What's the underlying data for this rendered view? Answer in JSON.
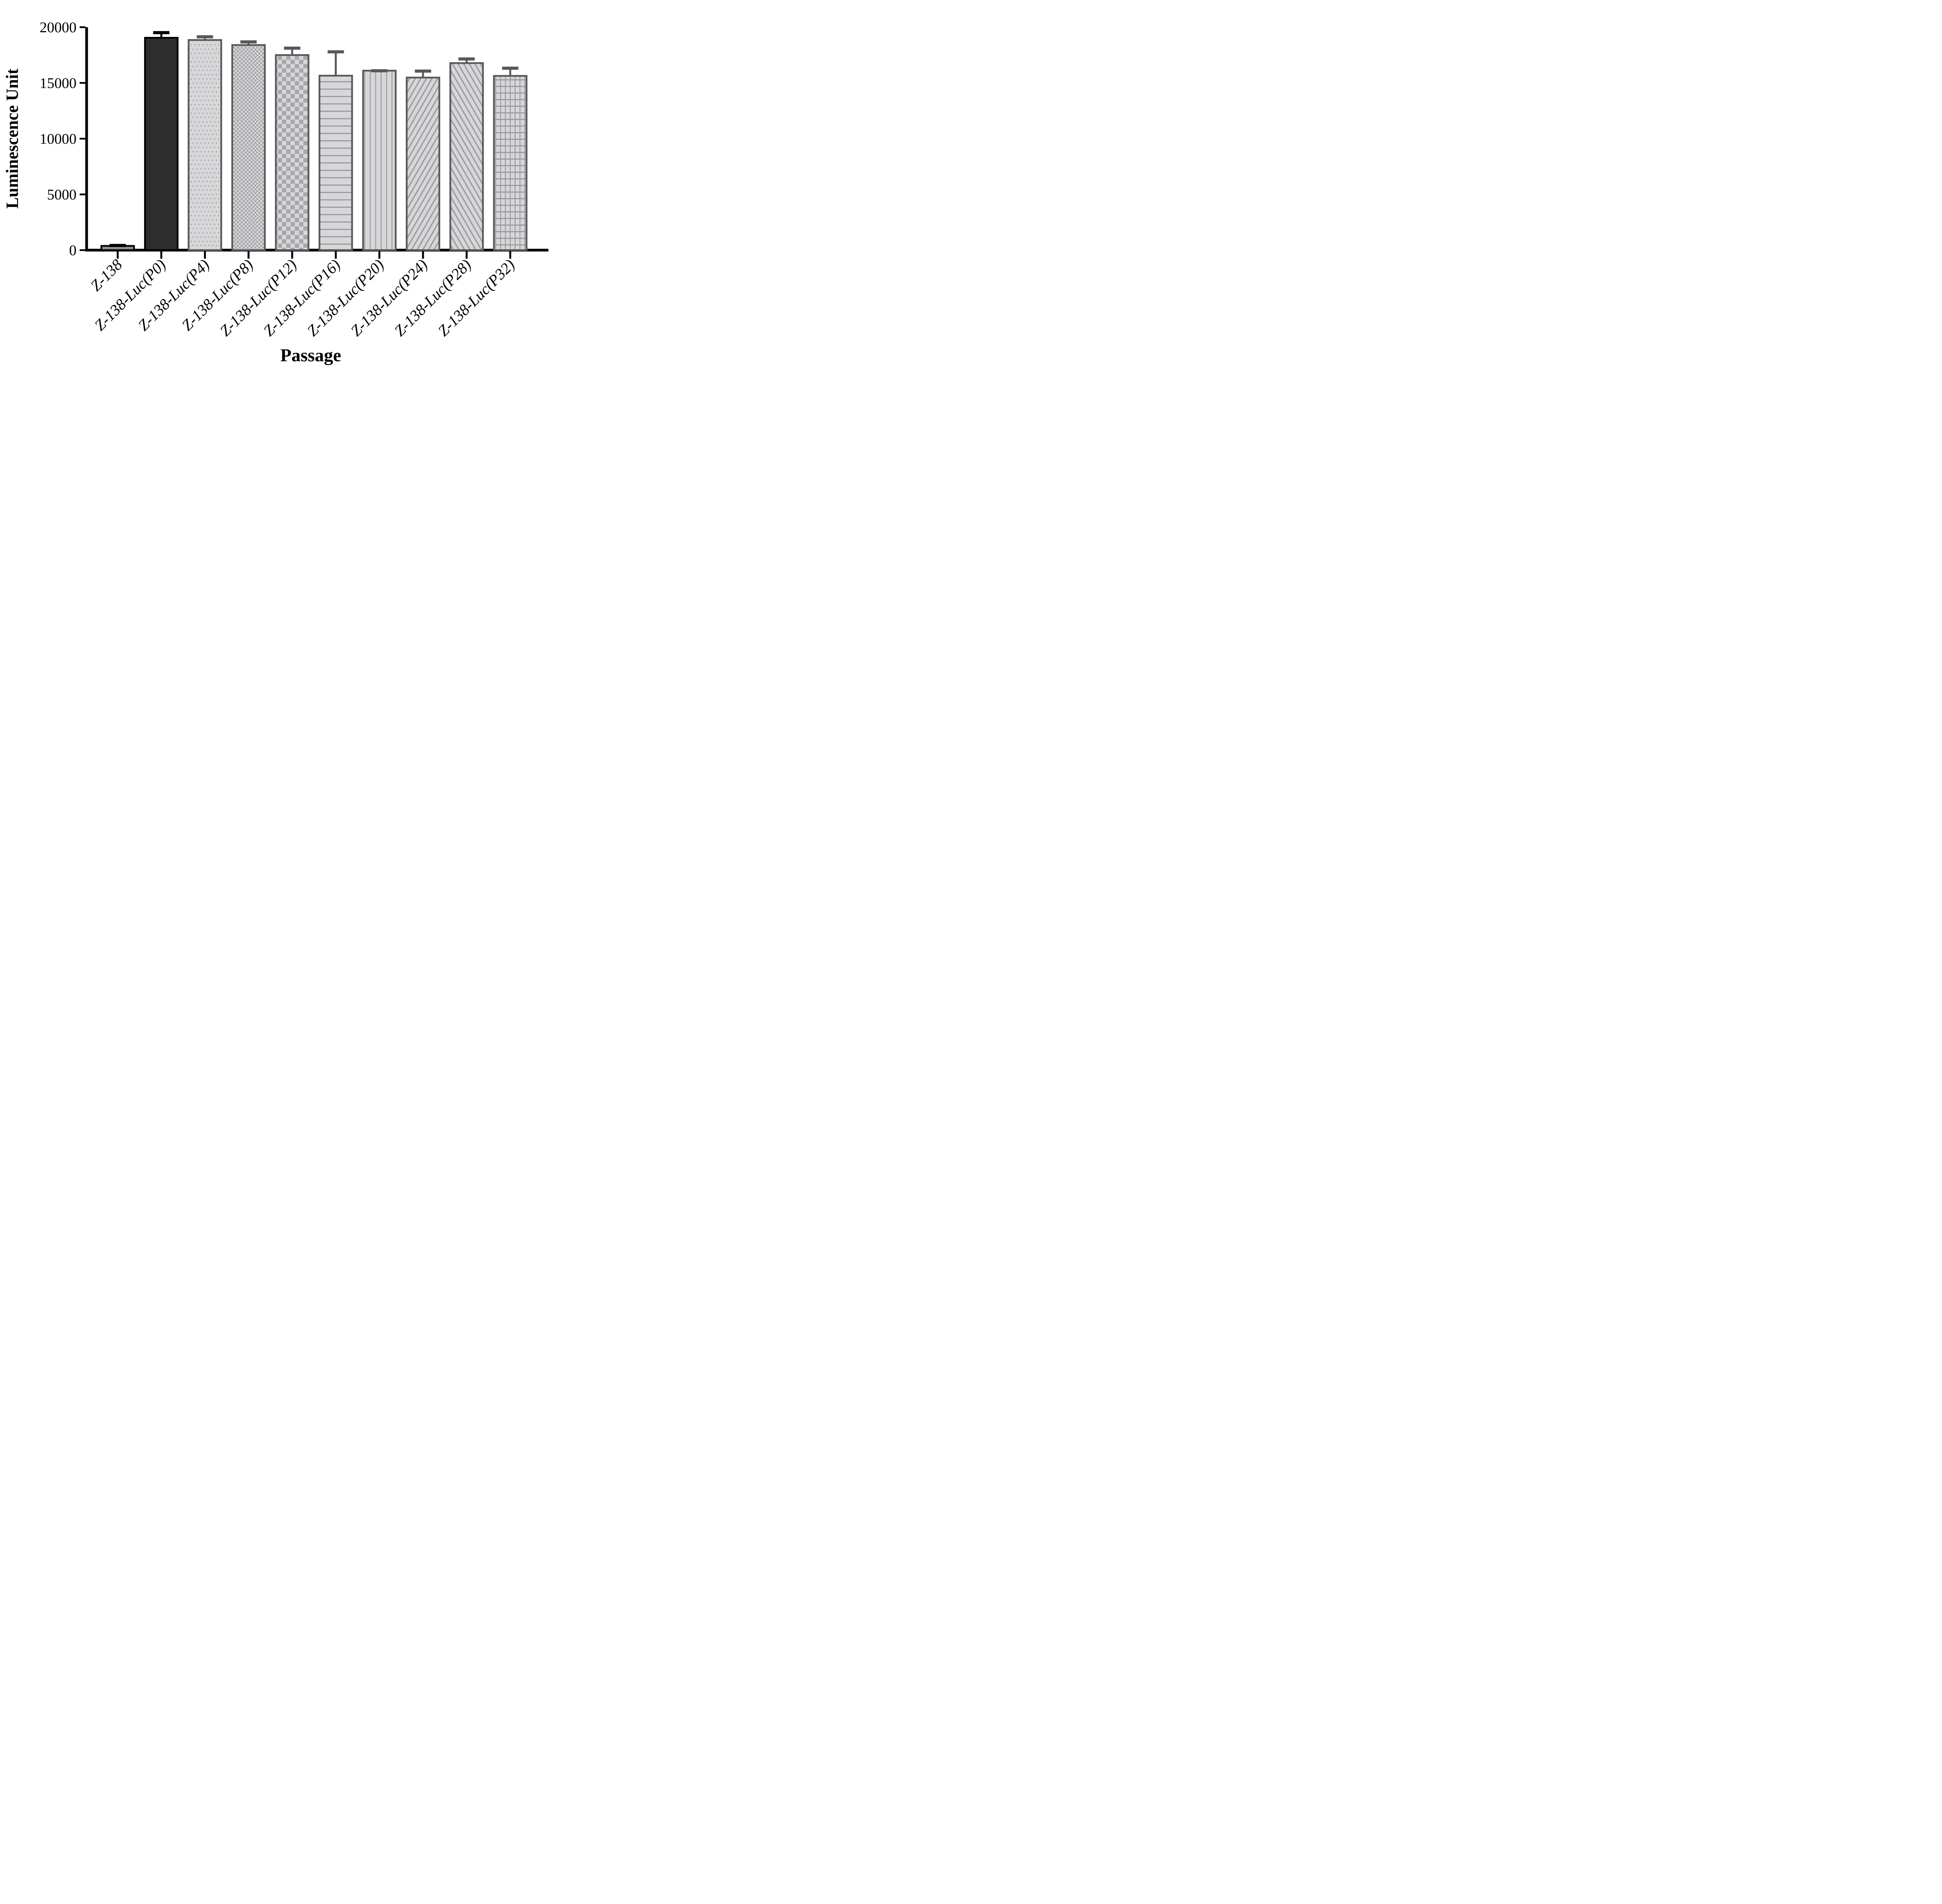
{
  "figure": {
    "background": "#ffffff",
    "kind": "grouped column chart with upper error bars, grayscale fill patterns"
  },
  "chart_data": {
    "type": "bar",
    "title": "",
    "xlabel": "Passage",
    "ylabel": "Luminescence Unit",
    "ylim": [
      0,
      20000
    ],
    "yticks": [
      0,
      5000,
      10000,
      15000,
      20000
    ],
    "ytick_labels": [
      "0",
      "5000",
      "10000",
      "15000",
      "20000"
    ],
    "grid": "off",
    "legend": "none",
    "categories": [
      "Z-138",
      "Z-138-Luc(P0)",
      "Z-138-Luc(P4)",
      "Z-138-Luc(P8)",
      "Z-138-Luc(P12)",
      "Z-138-Luc(P16)",
      "Z-138-Luc(P20)",
      "Z-138-Luc(P24)",
      "Z-138-Luc(P28)",
      "Z-138-Luc(P32)"
    ],
    "values": [
      380,
      19050,
      18850,
      18400,
      17500,
      15650,
      16100,
      15480,
      16780,
      15630
    ],
    "error_plus": [
      180,
      600,
      430,
      420,
      760,
      2280,
      130,
      720,
      510,
      830
    ],
    "bar_patterns": [
      "solid-gray",
      "solid-dark",
      "dots",
      "checker-small",
      "checker-large",
      "hlines",
      "vlines",
      "diag-up",
      "diag-down",
      "grid"
    ],
    "colors": {
      "black": "#000000",
      "dark_bar_fill": "#2d2d2d",
      "small_bar_fill": "#8f8f8f",
      "light_bar_fill": "#d7d7d9",
      "pattern_gray": "#9b9ba1",
      "checker_gray": "#a7a7ad",
      "patterned_border_gray": "#58585a",
      "background": "#ffffff"
    }
  }
}
